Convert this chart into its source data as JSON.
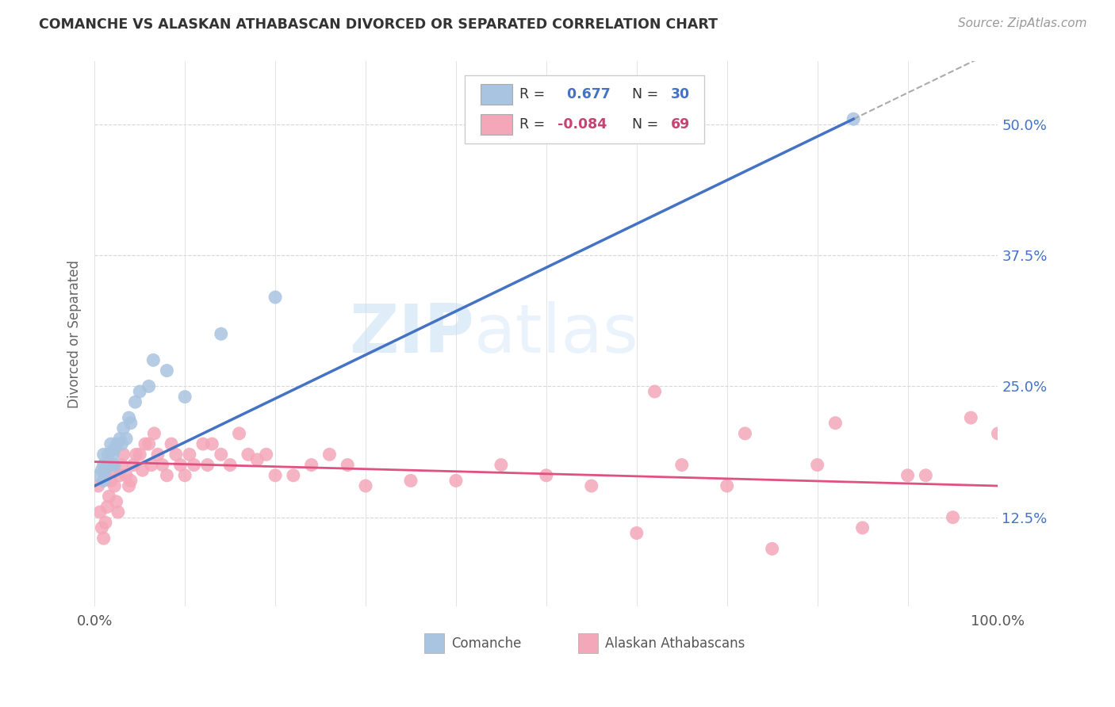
{
  "title": "COMANCHE VS ALASKAN ATHABASCAN DIVORCED OR SEPARATED CORRELATION CHART",
  "source": "Source: ZipAtlas.com",
  "ylabel": "Divorced or Separated",
  "xlim": [
    0.0,
    1.0
  ],
  "ylim": [
    0.04,
    0.56
  ],
  "yticks": [
    0.125,
    0.25,
    0.375,
    0.5
  ],
  "ytick_labels": [
    "12.5%",
    "25.0%",
    "37.5%",
    "50.0%"
  ],
  "comanche_R": 0.677,
  "comanche_N": 30,
  "alaskan_R": -0.084,
  "alaskan_N": 69,
  "comanche_color": "#a8c4e0",
  "comanche_line_color": "#4472c4",
  "alaskan_color": "#f4a7b9",
  "alaskan_line_color": "#e05080",
  "watermark_zip": "ZIP",
  "watermark_atlas": "atlas",
  "background_color": "#ffffff",
  "comanche_x": [
    0.005,
    0.008,
    0.01,
    0.01,
    0.01,
    0.012,
    0.015,
    0.015,
    0.017,
    0.018,
    0.02,
    0.02,
    0.022,
    0.022,
    0.025,
    0.028,
    0.03,
    0.032,
    0.035,
    0.038,
    0.04,
    0.045,
    0.05,
    0.06,
    0.065,
    0.08,
    0.1,
    0.14,
    0.2,
    0.84
  ],
  "comanche_y": [
    0.165,
    0.17,
    0.16,
    0.175,
    0.185,
    0.17,
    0.175,
    0.185,
    0.175,
    0.195,
    0.175,
    0.185,
    0.175,
    0.19,
    0.195,
    0.2,
    0.195,
    0.21,
    0.2,
    0.22,
    0.215,
    0.235,
    0.245,
    0.25,
    0.275,
    0.265,
    0.24,
    0.3,
    0.335,
    0.505
  ],
  "alaskan_x": [
    0.004,
    0.006,
    0.008,
    0.01,
    0.012,
    0.014,
    0.016,
    0.018,
    0.02,
    0.022,
    0.024,
    0.026,
    0.028,
    0.03,
    0.032,
    0.035,
    0.038,
    0.04,
    0.043,
    0.046,
    0.05,
    0.053,
    0.056,
    0.06,
    0.063,
    0.066,
    0.07,
    0.075,
    0.08,
    0.085,
    0.09,
    0.095,
    0.1,
    0.105,
    0.11,
    0.12,
    0.125,
    0.13,
    0.14,
    0.15,
    0.16,
    0.17,
    0.18,
    0.19,
    0.2,
    0.22,
    0.24,
    0.26,
    0.28,
    0.3,
    0.35,
    0.4,
    0.45,
    0.5,
    0.55,
    0.6,
    0.65,
    0.7,
    0.75,
    0.8,
    0.85,
    0.9,
    0.95,
    1.0,
    0.62,
    0.72,
    0.82,
    0.92,
    0.97
  ],
  "alaskan_y": [
    0.155,
    0.13,
    0.115,
    0.105,
    0.12,
    0.135,
    0.145,
    0.16,
    0.17,
    0.155,
    0.14,
    0.13,
    0.165,
    0.175,
    0.185,
    0.165,
    0.155,
    0.16,
    0.175,
    0.185,
    0.185,
    0.17,
    0.195,
    0.195,
    0.175,
    0.205,
    0.185,
    0.175,
    0.165,
    0.195,
    0.185,
    0.175,
    0.165,
    0.185,
    0.175,
    0.195,
    0.175,
    0.195,
    0.185,
    0.175,
    0.205,
    0.185,
    0.18,
    0.185,
    0.165,
    0.165,
    0.175,
    0.185,
    0.175,
    0.155,
    0.16,
    0.16,
    0.175,
    0.165,
    0.155,
    0.11,
    0.175,
    0.155,
    0.095,
    0.175,
    0.115,
    0.165,
    0.125,
    0.205,
    0.245,
    0.205,
    0.215,
    0.165,
    0.22
  ]
}
